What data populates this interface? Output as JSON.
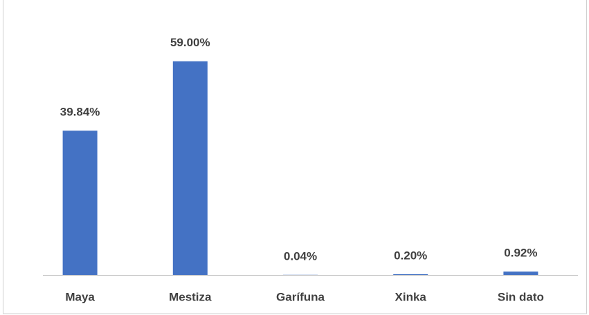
{
  "chart_data": {
    "type": "bar",
    "categories": [
      "Maya",
      "Mestiza",
      "Garífuna",
      "Xinka",
      "Sin dato"
    ],
    "values": [
      39.84,
      59.0,
      0.04,
      0.2,
      0.92
    ],
    "value_labels": [
      "39.84%",
      "59.00%",
      "0.04%",
      "0.20%",
      "0.92%"
    ],
    "color": "#4472c4",
    "ylim": [
      0,
      70
    ]
  }
}
